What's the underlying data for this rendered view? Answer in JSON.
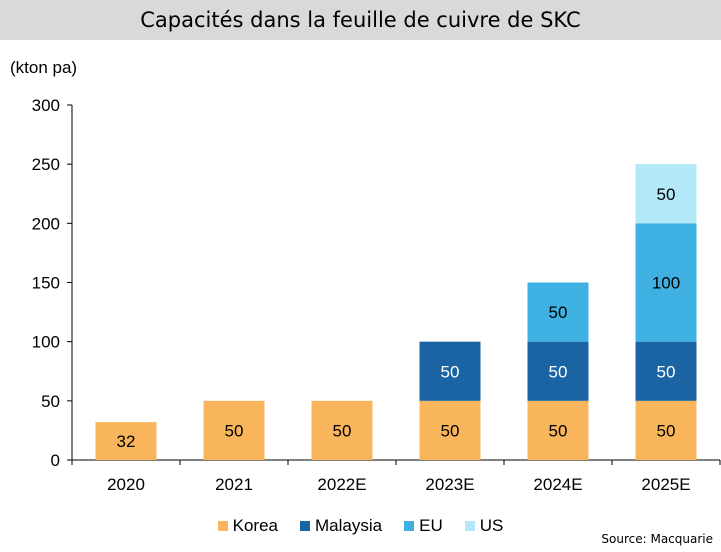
{
  "title": "Capacités dans la feuille de cuivre de SKC",
  "source": "Source: Macquarie",
  "chart_data": {
    "type": "bar",
    "stacked": true,
    "ylabel": "(kton pa)",
    "ylim": [
      0,
      300
    ],
    "yticks": [
      0,
      50,
      100,
      150,
      200,
      250,
      300
    ],
    "categories": [
      "2020",
      "2021",
      "2022E",
      "2023E",
      "2024E",
      "2025E"
    ],
    "series": [
      {
        "name": "Korea",
        "color": "#f9b55b",
        "values": [
          32,
          50,
          50,
          50,
          50,
          50
        ]
      },
      {
        "name": "Malaysia",
        "color": "#1a64a3",
        "values": [
          0,
          0,
          0,
          50,
          50,
          50
        ]
      },
      {
        "name": "EU",
        "color": "#3eb1e2",
        "values": [
          0,
          0,
          0,
          0,
          50,
          100
        ]
      },
      {
        "name": "US",
        "color": "#b3e8f8",
        "values": [
          0,
          0,
          0,
          0,
          0,
          50
        ]
      }
    ],
    "legend": "bottom",
    "grid": false
  }
}
